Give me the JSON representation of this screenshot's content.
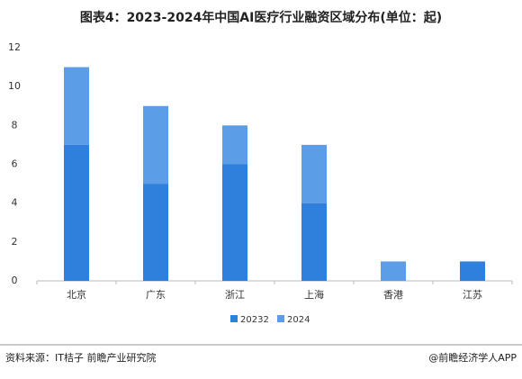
{
  "chart_data": {
    "type": "stacked_bar",
    "title": "图表4：2023-2024年中国AI医疗行业融资区域分布(单位：起)",
    "categories": [
      "北京",
      "广东",
      "浙江",
      "上海",
      "香港",
      "江苏"
    ],
    "series": [
      {
        "name": "20232",
        "color": "#2f7fdc",
        "values": [
          7,
          5,
          6,
          4,
          0,
          1
        ]
      },
      {
        "name": "2024",
        "color": "#5b9de6",
        "values": [
          4,
          4,
          2,
          3,
          1,
          0
        ]
      }
    ],
    "ylim": [
      0,
      12
    ],
    "yticks": [
      0,
      2,
      4,
      6,
      8,
      10,
      12
    ],
    "grid": false,
    "source": "资料来源：IT桔子 前瞻产业研究院",
    "credit": "@前瞻经济学人APP"
  }
}
